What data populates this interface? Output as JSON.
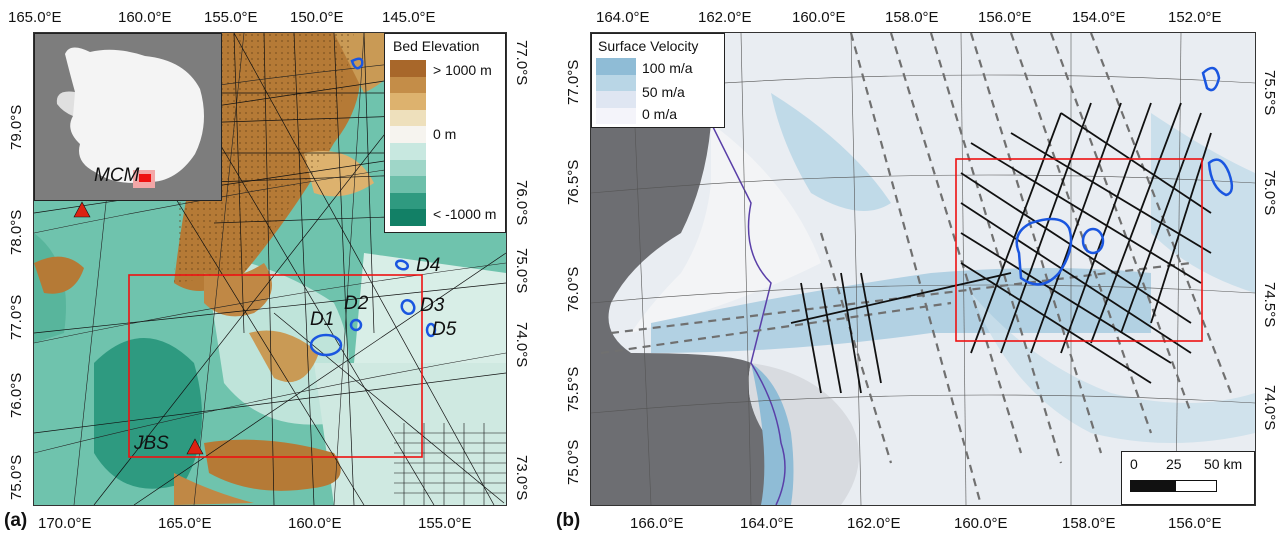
{
  "panels": {
    "a": {
      "letter": "(a)",
      "top_ticks": [
        "165.0°E",
        "160.0°E",
        "155.0°E",
        "150.0°E",
        "145.0°E"
      ],
      "bottom_ticks": [
        "170.0°E",
        "165.0°E",
        "160.0°E",
        "155.0°E"
      ],
      "left_ticks": [
        "79.0°S",
        "78.0°S",
        "77.0°S",
        "76.0°S",
        "75.0°S"
      ],
      "right_ticks": [
        "77.0°S",
        "76.0°S",
        "75.0°S",
        "74.0°S",
        "73.0°S"
      ],
      "legend": {
        "title": "Bed Elevation",
        "labels": [
          "> 1000 m",
          "0 m",
          "< -1000 m"
        ],
        "colors": [
          "#a8672a",
          "#c48d48",
          "#ddb26e",
          "#eee0bc",
          "#f6f4ef",
          "#c8e8e0",
          "#9fd6c8",
          "#6dbfaa",
          "#2f9a80",
          "#128066"
        ]
      },
      "sites": [
        "MCM",
        "JBS"
      ],
      "lakes": [
        "D1",
        "D2",
        "D3",
        "D4",
        "D5"
      ]
    },
    "b": {
      "letter": "(b)",
      "top_ticks": [
        "164.0°E",
        "162.0°E",
        "160.0°E",
        "158.0°E",
        "156.0°E",
        "154.0°E",
        "152.0°E"
      ],
      "bottom_ticks": [
        "166.0°E",
        "164.0°E",
        "162.0°E",
        "160.0°E",
        "158.0°E",
        "156.0°E"
      ],
      "left_ticks": [
        "77.0°S",
        "76.5°S",
        "76.0°S",
        "75.5°S",
        "75.0°S"
      ],
      "right_ticks": [
        "75.5°S",
        "75.0°S",
        "74.5°S",
        "74.0°S"
      ],
      "legend": {
        "title": "Surface Velocity",
        "labels": [
          "100 m/a",
          "50 m/a",
          "0 m/a"
        ],
        "colors": [
          "#8fbcd6",
          "#b9d6e6",
          "#dfe6f2",
          "#f4f4fa"
        ]
      },
      "scalebar": {
        "labels": [
          "0",
          "25",
          "50 km"
        ]
      }
    }
  }
}
